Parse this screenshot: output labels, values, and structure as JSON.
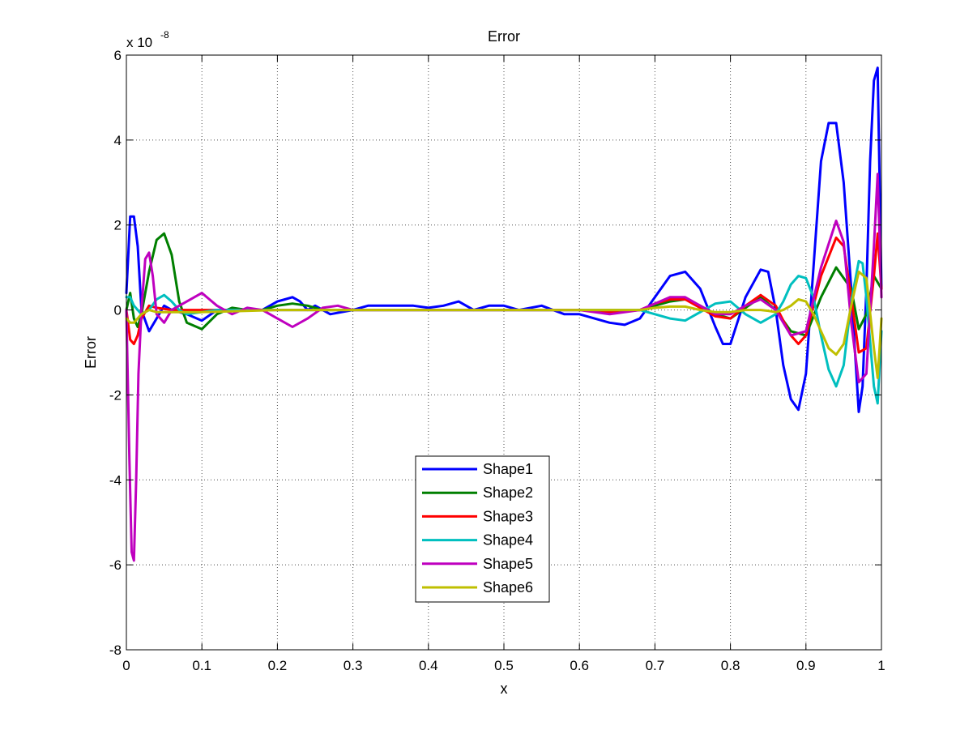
{
  "chart_data": {
    "type": "line",
    "title": "Error",
    "xlabel": "x",
    "ylabel": "Error",
    "scale_base": "x 10",
    "scale_exponent": "-8",
    "xlim": [
      0,
      1
    ],
    "ylim": [
      -8,
      6
    ],
    "grid": true,
    "legend_position": "lower-center",
    "x_ticks": [
      "0",
      "0.1",
      "0.2",
      "0.3",
      "0.4",
      "0.5",
      "0.6",
      "0.7",
      "0.8",
      "0.9",
      "1"
    ],
    "y_ticks": [
      "-8",
      "-6",
      "-4",
      "-2",
      "0",
      "2",
      "4",
      "6"
    ],
    "x_tick_values": [
      0,
      0.1,
      0.2,
      0.3,
      0.4,
      0.5,
      0.6,
      0.7,
      0.8,
      0.9,
      1
    ],
    "y_tick_values": [
      -8,
      -6,
      -4,
      -2,
      0,
      2,
      4,
      6
    ],
    "series": [
      {
        "name": "Shape1",
        "color": "#0000ff",
        "x": [
          0,
          0.005,
          0.01,
          0.015,
          0.02,
          0.03,
          0.04,
          0.05,
          0.06,
          0.08,
          0.1,
          0.12,
          0.15,
          0.18,
          0.2,
          0.21,
          0.22,
          0.23,
          0.24,
          0.25,
          0.27,
          0.3,
          0.32,
          0.35,
          0.38,
          0.4,
          0.42,
          0.44,
          0.46,
          0.48,
          0.5,
          0.52,
          0.55,
          0.58,
          0.6,
          0.62,
          0.64,
          0.66,
          0.68,
          0.7,
          0.72,
          0.74,
          0.76,
          0.78,
          0.79,
          0.8,
          0.82,
          0.84,
          0.85,
          0.86,
          0.87,
          0.88,
          0.89,
          0.9,
          0.91,
          0.92,
          0.93,
          0.94,
          0.95,
          0.96,
          0.965,
          0.97,
          0.975,
          0.98,
          0.985,
          0.99,
          0.995,
          1
        ],
        "y": [
          0.4,
          2.2,
          2.2,
          1.5,
          0.0,
          -0.5,
          -0.2,
          0.1,
          0.0,
          -0.1,
          -0.25,
          0.0,
          0.0,
          0.0,
          0.2,
          0.25,
          0.3,
          0.2,
          0.0,
          0.1,
          -0.1,
          0.0,
          0.1,
          0.1,
          0.1,
          0.05,
          0.1,
          0.2,
          0.0,
          0.1,
          0.1,
          0.0,
          0.1,
          -0.1,
          -0.1,
          -0.2,
          -0.3,
          -0.35,
          -0.2,
          0.3,
          0.8,
          0.9,
          0.5,
          -0.4,
          -0.8,
          -0.8,
          0.3,
          0.95,
          0.9,
          0.0,
          -1.3,
          -2.1,
          -2.35,
          -1.5,
          1.0,
          3.5,
          4.4,
          4.4,
          3.0,
          0.5,
          -1.0,
          -2.4,
          -1.8,
          0.5,
          3.5,
          5.4,
          5.7,
          0.5
        ]
      },
      {
        "name": "Shape2",
        "color": "#007f00",
        "x": [
          0,
          0.005,
          0.01,
          0.015,
          0.02,
          0.03,
          0.04,
          0.05,
          0.06,
          0.07,
          0.08,
          0.1,
          0.12,
          0.14,
          0.16,
          0.18,
          0.2,
          0.22,
          0.24,
          0.26,
          0.3,
          0.4,
          0.5,
          0.6,
          0.64,
          0.68,
          0.7,
          0.72,
          0.74,
          0.76,
          0.78,
          0.8,
          0.82,
          0.84,
          0.86,
          0.88,
          0.9,
          0.92,
          0.94,
          0.96,
          0.97,
          0.98,
          0.99,
          1
        ],
        "y": [
          0.0,
          0.4,
          -0.2,
          -0.4,
          -0.1,
          0.9,
          1.65,
          1.8,
          1.3,
          0.2,
          -0.3,
          -0.45,
          -0.1,
          0.05,
          0.0,
          0.0,
          0.1,
          0.15,
          0.1,
          0.0,
          0.0,
          0.0,
          0.0,
          0.0,
          -0.05,
          0.0,
          0.1,
          0.2,
          0.25,
          0.1,
          -0.1,
          -0.2,
          0.05,
          0.3,
          0.0,
          -0.5,
          -0.6,
          0.3,
          1.0,
          0.5,
          -0.45,
          -0.1,
          0.8,
          0.5
        ]
      },
      {
        "name": "Shape3",
        "color": "#ff0000",
        "x": [
          0,
          0.005,
          0.01,
          0.015,
          0.02,
          0.03,
          0.04,
          0.06,
          0.08,
          0.1,
          0.15,
          0.2,
          0.3,
          0.4,
          0.5,
          0.6,
          0.65,
          0.68,
          0.7,
          0.72,
          0.74,
          0.76,
          0.78,
          0.8,
          0.82,
          0.84,
          0.86,
          0.88,
          0.89,
          0.9,
          0.92,
          0.94,
          0.95,
          0.96,
          0.97,
          0.98,
          0.99,
          0.995,
          1
        ],
        "y": [
          0.0,
          -0.7,
          -0.8,
          -0.6,
          -0.2,
          0.1,
          0.05,
          0.0,
          0.0,
          0.0,
          0.0,
          0.0,
          0.0,
          0.0,
          0.0,
          0.0,
          -0.05,
          0.0,
          0.15,
          0.25,
          0.25,
          0.05,
          -0.15,
          -0.2,
          0.1,
          0.35,
          0.1,
          -0.6,
          -0.8,
          -0.6,
          0.8,
          1.7,
          1.5,
          0.3,
          -1.0,
          -0.9,
          0.8,
          1.8,
          0.5
        ]
      },
      {
        "name": "Shape4",
        "color": "#00bfbf",
        "x": [
          0,
          0.005,
          0.01,
          0.02,
          0.03,
          0.04,
          0.05,
          0.06,
          0.07,
          0.08,
          0.1,
          0.12,
          0.15,
          0.2,
          0.3,
          0.4,
          0.5,
          0.6,
          0.65,
          0.68,
          0.7,
          0.72,
          0.74,
          0.76,
          0.78,
          0.8,
          0.82,
          0.84,
          0.86,
          0.87,
          0.88,
          0.89,
          0.9,
          0.91,
          0.92,
          0.93,
          0.94,
          0.95,
          0.96,
          0.97,
          0.975,
          0.98,
          0.99,
          0.995,
          1
        ],
        "y": [
          0.3,
          0.3,
          0.1,
          -0.1,
          0.0,
          0.25,
          0.35,
          0.2,
          0.0,
          -0.1,
          -0.05,
          0.0,
          0.0,
          0.0,
          0.0,
          0.0,
          0.0,
          0.0,
          0.0,
          0.0,
          -0.1,
          -0.2,
          -0.25,
          -0.05,
          0.15,
          0.2,
          -0.1,
          -0.3,
          -0.1,
          0.2,
          0.6,
          0.8,
          0.75,
          0.3,
          -0.6,
          -1.4,
          -1.8,
          -1.3,
          0.2,
          1.15,
          1.1,
          0.3,
          -1.8,
          -2.2,
          -0.5
        ]
      },
      {
        "name": "Shape5",
        "color": "#bf00bf",
        "x": [
          0,
          0.004,
          0.007,
          0.01,
          0.013,
          0.016,
          0.02,
          0.025,
          0.03,
          0.035,
          0.04,
          0.05,
          0.06,
          0.08,
          0.1,
          0.12,
          0.14,
          0.16,
          0.18,
          0.2,
          0.22,
          0.24,
          0.26,
          0.28,
          0.3,
          0.4,
          0.5,
          0.6,
          0.64,
          0.68,
          0.7,
          0.72,
          0.74,
          0.76,
          0.78,
          0.8,
          0.82,
          0.84,
          0.86,
          0.88,
          0.9,
          0.92,
          0.94,
          0.95,
          0.96,
          0.97,
          0.98,
          0.99,
          0.995,
          1
        ],
        "y": [
          0.0,
          -3.5,
          -5.7,
          -5.9,
          -4.0,
          -1.5,
          0.0,
          1.2,
          1.35,
          0.8,
          -0.1,
          -0.3,
          0.0,
          0.2,
          0.4,
          0.1,
          -0.1,
          0.05,
          0.0,
          -0.2,
          -0.4,
          -0.2,
          0.05,
          0.1,
          0.0,
          0.0,
          0.0,
          0.0,
          -0.1,
          0.0,
          0.15,
          0.3,
          0.3,
          0.1,
          -0.1,
          -0.1,
          0.1,
          0.25,
          0.0,
          -0.6,
          -0.5,
          1.0,
          2.1,
          1.6,
          -0.3,
          -1.7,
          -1.5,
          1.5,
          3.2,
          0.3
        ]
      },
      {
        "name": "Shape6",
        "color": "#bfbf00",
        "x": [
          0,
          0.005,
          0.01,
          0.02,
          0.03,
          0.04,
          0.06,
          0.1,
          0.2,
          0.3,
          0.4,
          0.5,
          0.6,
          0.68,
          0.7,
          0.72,
          0.74,
          0.76,
          0.78,
          0.8,
          0.82,
          0.84,
          0.85,
          0.86,
          0.87,
          0.88,
          0.89,
          0.9,
          0.91,
          0.92,
          0.93,
          0.94,
          0.95,
          0.96,
          0.97,
          0.98,
          0.99,
          0.995,
          1
        ],
        "y": [
          -0.2,
          -0.3,
          -0.3,
          -0.1,
          0.0,
          -0.05,
          -0.05,
          -0.05,
          0.0,
          0.0,
          0.0,
          0.0,
          0.0,
          0.0,
          0.05,
          0.08,
          0.08,
          0.0,
          -0.05,
          -0.05,
          0.0,
          0.0,
          -0.02,
          -0.05,
          0.0,
          0.1,
          0.25,
          0.2,
          -0.1,
          -0.5,
          -0.9,
          -1.05,
          -0.8,
          0.1,
          0.9,
          0.75,
          -0.9,
          -1.6,
          -0.2
        ]
      }
    ]
  }
}
